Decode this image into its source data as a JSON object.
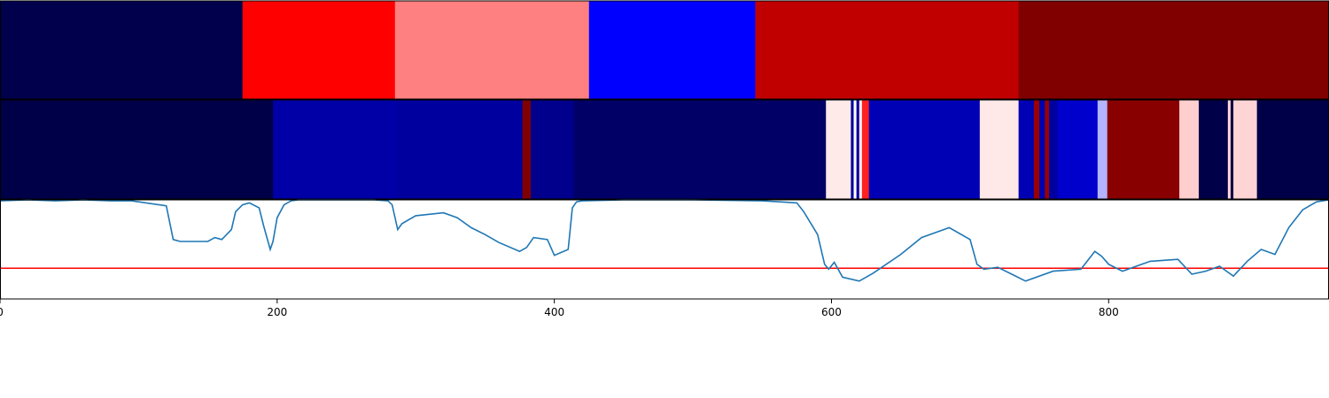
{
  "chart_data": {
    "type": "heatmap",
    "x_range": [
      0,
      959
    ],
    "x_ticks": [
      0,
      200,
      400,
      600,
      800
    ],
    "panels": [
      {
        "kind": "segment-strip",
        "segments": [
          {
            "start": 0,
            "end": 175,
            "color": "#00004c"
          },
          {
            "start": 175,
            "end": 285,
            "color": "#ff0000"
          },
          {
            "start": 285,
            "end": 425,
            "color": "#ff8080"
          },
          {
            "start": 425,
            "end": 545,
            "color": "#0000ff"
          },
          {
            "start": 545,
            "end": 735,
            "color": "#c00000"
          },
          {
            "start": 735,
            "end": 959,
            "color": "#800000"
          }
        ]
      },
      {
        "kind": "segment-strip",
        "segments": [
          {
            "start": 0,
            "end": 197,
            "color": "#000048"
          },
          {
            "start": 197,
            "end": 287,
            "color": "#0000a6"
          },
          {
            "start": 287,
            "end": 377,
            "color": "#00009e"
          },
          {
            "start": 377,
            "end": 383,
            "color": "#800000"
          },
          {
            "start": 383,
            "end": 414,
            "color": "#00008c"
          },
          {
            "start": 414,
            "end": 596,
            "color": "#000066"
          },
          {
            "start": 596,
            "end": 614,
            "color": "#ffeaea"
          },
          {
            "start": 614,
            "end": 616,
            "color": "#0000a0"
          },
          {
            "start": 616,
            "end": 618,
            "color": "#ffffff"
          },
          {
            "start": 618,
            "end": 620,
            "color": "#0000a0"
          },
          {
            "start": 620,
            "end": 622,
            "color": "#ffeaea"
          },
          {
            "start": 622,
            "end": 627,
            "color": "#ff2020"
          },
          {
            "start": 627,
            "end": 707,
            "color": "#0000b4"
          },
          {
            "start": 707,
            "end": 735,
            "color": "#ffe8e8"
          },
          {
            "start": 735,
            "end": 746,
            "color": "#0000b4"
          },
          {
            "start": 746,
            "end": 750,
            "color": "#9a0000"
          },
          {
            "start": 750,
            "end": 754,
            "color": "#0000b0"
          },
          {
            "start": 754,
            "end": 757,
            "color": "#9a0000"
          },
          {
            "start": 757,
            "end": 763,
            "color": "#0000a0"
          },
          {
            "start": 763,
            "end": 792,
            "color": "#0000cc"
          },
          {
            "start": 792,
            "end": 799,
            "color": "#b3b3ff"
          },
          {
            "start": 799,
            "end": 851,
            "color": "#880000"
          },
          {
            "start": 851,
            "end": 865,
            "color": "#ffcfcf"
          },
          {
            "start": 865,
            "end": 886,
            "color": "#000048"
          },
          {
            "start": 886,
            "end": 888,
            "color": "#ffd4d4"
          },
          {
            "start": 888,
            "end": 890,
            "color": "#000048"
          },
          {
            "start": 890,
            "end": 907,
            "color": "#ffd4d4"
          },
          {
            "start": 907,
            "end": 959,
            "color": "#000048"
          }
        ]
      },
      {
        "kind": "line",
        "ylim": [
          0,
          1
        ],
        "series_color": "#1f77b4",
        "threshold": 0.31,
        "threshold_color": "#ff0000",
        "x": [
          0,
          20,
          40,
          60,
          80,
          95,
          120,
          125,
          130,
          150,
          155,
          160,
          167,
          170,
          175,
          180,
          187,
          190,
          195,
          197,
          200,
          205,
          210,
          215,
          230,
          270,
          280,
          283,
          287,
          290,
          300,
          320,
          330,
          340,
          350,
          360,
          375,
          380,
          385,
          395,
          400,
          410,
          413,
          416,
          420,
          450,
          500,
          550,
          575,
          580,
          590,
          595,
          598,
          602,
          608,
          620,
          630,
          650,
          665,
          685,
          700,
          705,
          710,
          720,
          740,
          760,
          780,
          790,
          795,
          800,
          810,
          830,
          850,
          860,
          870,
          880,
          890,
          900,
          910,
          920,
          930,
          940,
          950,
          959
        ],
        "y": [
          0.99,
          1.0,
          0.99,
          1.0,
          0.99,
          0.99,
          0.94,
          0.6,
          0.58,
          0.58,
          0.62,
          0.6,
          0.7,
          0.88,
          0.95,
          0.97,
          0.92,
          0.75,
          0.5,
          0.58,
          0.82,
          0.95,
          0.99,
          1.0,
          1.0,
          1.0,
          0.99,
          0.95,
          0.7,
          0.76,
          0.84,
          0.87,
          0.82,
          0.72,
          0.65,
          0.57,
          0.48,
          0.52,
          0.62,
          0.6,
          0.44,
          0.5,
          0.92,
          0.98,
          0.99,
          1.0,
          1.0,
          0.99,
          0.97,
          0.88,
          0.65,
          0.35,
          0.3,
          0.37,
          0.22,
          0.18,
          0.26,
          0.45,
          0.62,
          0.72,
          0.6,
          0.35,
          0.3,
          0.32,
          0.18,
          0.28,
          0.3,
          0.48,
          0.43,
          0.35,
          0.28,
          0.38,
          0.4,
          0.25,
          0.28,
          0.33,
          0.23,
          0.38,
          0.5,
          0.45,
          0.72,
          0.9,
          0.98,
          1.0
        ]
      }
    ]
  }
}
